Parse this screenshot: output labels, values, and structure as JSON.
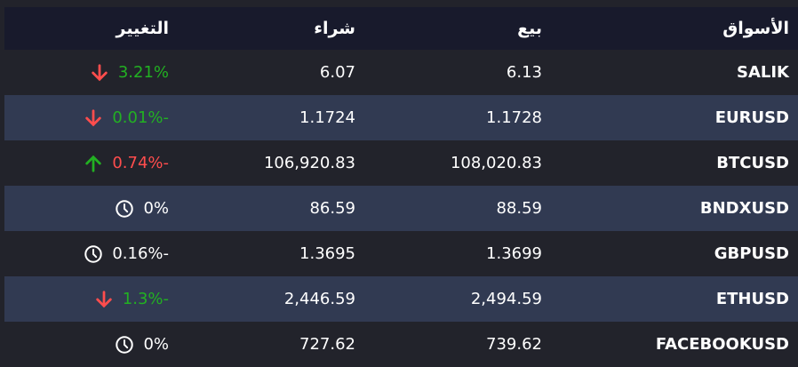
{
  "colors": {
    "up": "#22b022",
    "down": "#ff4d4d",
    "neutral": "#ffffff",
    "header_bg": "#181a2c",
    "row_bg": "#22232b",
    "row_alt_bg": "#313a52"
  },
  "headers": {
    "market": "الأسواق",
    "sell": "بيع",
    "buy": "شراء",
    "change": "التغيير"
  },
  "rows": [
    {
      "market": "SALIK",
      "sell": "6.13",
      "buy": "6.07",
      "change": "3.21%",
      "icon": "arrow-down-icon",
      "change_color": "#22b022"
    },
    {
      "market": "EURUSD",
      "sell": "1.1728",
      "buy": "1.1724",
      "change": "0.01%-",
      "icon": "arrow-down-icon",
      "change_color": "#22b022"
    },
    {
      "market": "BTCUSD",
      "sell": "108,020.83",
      "buy": "106,920.83",
      "change": "0.74%-",
      "icon": "arrow-up-icon",
      "change_color": "#ff4d4d"
    },
    {
      "market": "BNDXUSD",
      "sell": "88.59",
      "buy": "86.59",
      "change": "0%",
      "icon": "clock-icon",
      "change_color": "#ffffff"
    },
    {
      "market": "GBPUSD",
      "sell": "1.3699",
      "buy": "1.3695",
      "change": "0.16%-",
      "icon": "clock-icon",
      "change_color": "#ffffff"
    },
    {
      "market": "ETHUSD",
      "sell": "2,494.59",
      "buy": "2,446.59",
      "change": "1.3%-",
      "icon": "arrow-down-icon",
      "change_color": "#22b022"
    },
    {
      "market": "FACEBOOKUSD",
      "sell": "739.62",
      "buy": "727.62",
      "change": "0%",
      "icon": "clock-icon",
      "change_color": "#ffffff"
    }
  ]
}
